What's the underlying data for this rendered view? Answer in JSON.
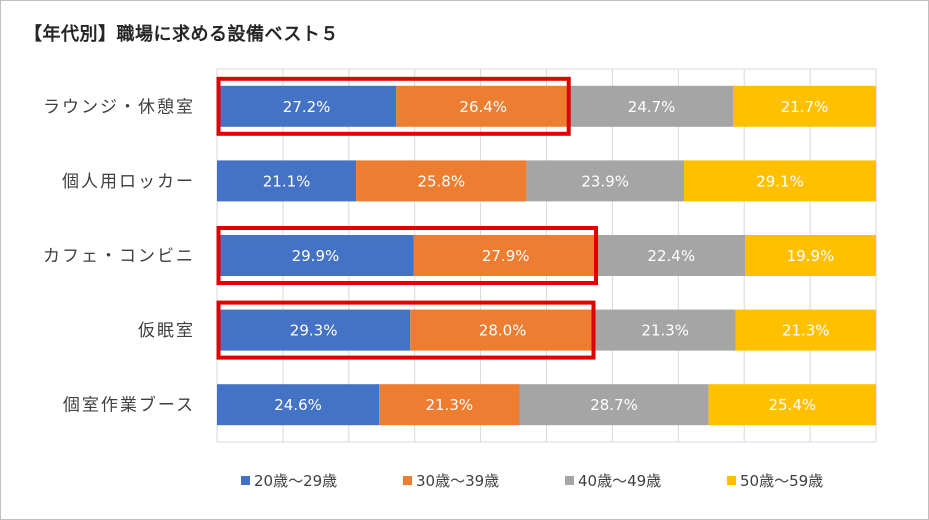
{
  "title": "【年代別】職場に求める設備ベスト５",
  "chart_data": {
    "type": "bar",
    "orientation": "horizontal",
    "stacked": "percent",
    "categories": [
      "ラウンジ・休憩室",
      "個人用ロッカー",
      "カフェ・コンビニ",
      "仮眠室",
      "個室作業ブース"
    ],
    "series": [
      {
        "name": "20歳〜29歳",
        "color": "#4472c4",
        "values": [
          27.2,
          21.1,
          29.9,
          29.3,
          24.6
        ]
      },
      {
        "name": "30歳〜39歳",
        "color": "#ed7d31",
        "values": [
          26.4,
          25.8,
          27.9,
          28.0,
          21.3
        ]
      },
      {
        "name": "40歳〜49歳",
        "color": "#a5a5a5",
        "values": [
          24.7,
          23.9,
          22.4,
          21.3,
          28.7
        ]
      },
      {
        "name": "50歳〜59歳",
        "color": "#ffc000",
        "values": [
          21.7,
          29.1,
          19.9,
          21.3,
          25.4
        ]
      }
    ],
    "value_suffix": "%",
    "highlighted": [
      {
        "category": "ラウンジ・休憩室",
        "series": [
          "20歳〜29歳",
          "30歳〜39歳"
        ]
      },
      {
        "category": "カフェ・コンビニ",
        "series": [
          "20歳〜29歳",
          "30歳〜39歳"
        ]
      },
      {
        "category": "仮眠室",
        "series": [
          "20歳〜29歳",
          "30歳〜39歳"
        ]
      }
    ],
    "highlight_color": "#e00000",
    "legend_position": "bottom",
    "grid": true
  }
}
